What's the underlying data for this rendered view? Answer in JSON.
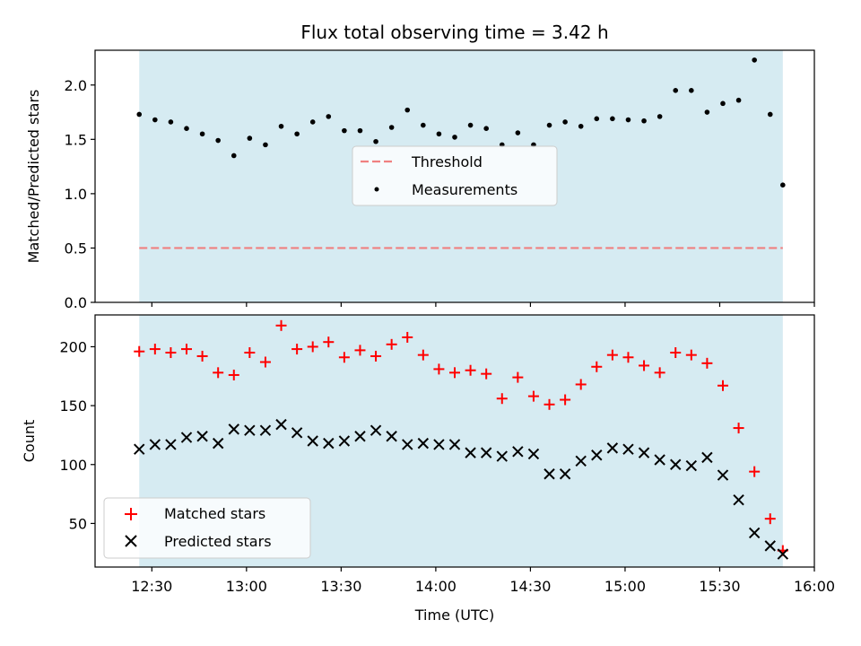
{
  "chart_data": [
    {
      "type": "scatter",
      "title": "Flux total observing time = 3.42 h",
      "xlabel": "",
      "ylabel": "Matched/Predicted stars",
      "ylim": [
        0,
        2.32
      ],
      "yticks": [
        "0.0",
        "0.5",
        "1.0",
        "1.5",
        "2.0"
      ],
      "ytick_values": [
        0,
        0.5,
        1.0,
        1.5,
        2.0
      ],
      "x_range": [
        "12:12",
        "16:00"
      ],
      "shaded_span": [
        "12:26",
        "15:50"
      ],
      "legend_placement": "center",
      "threshold": {
        "name": "Threshold",
        "value": 0.5,
        "color": "#f08080",
        "style": "dashed"
      },
      "series": [
        {
          "name": "Measurements",
          "color": "#000000",
          "marker": "dot",
          "x": [
            "12:26",
            "12:31",
            "12:36",
            "12:41",
            "12:46",
            "12:51",
            "12:56",
            "13:01",
            "13:06",
            "13:11",
            "13:16",
            "13:21",
            "13:26",
            "13:31",
            "13:36",
            "13:41",
            "13:46",
            "13:51",
            "13:56",
            "14:01",
            "14:06",
            "14:11",
            "14:16",
            "14:21",
            "14:26",
            "14:31",
            "14:36",
            "14:41",
            "14:46",
            "14:51",
            "14:56",
            "15:01",
            "15:06",
            "15:11",
            "15:16",
            "15:21",
            "15:26",
            "15:31",
            "15:36",
            "15:41",
            "15:46",
            "15:50"
          ],
          "y": [
            1.73,
            1.68,
            1.66,
            1.6,
            1.55,
            1.49,
            1.35,
            1.51,
            1.45,
            1.62,
            1.55,
            1.66,
            1.71,
            1.58,
            1.58,
            1.48,
            1.61,
            1.77,
            1.63,
            1.55,
            1.52,
            1.63,
            1.6,
            1.45,
            1.56,
            1.45,
            1.63,
            1.66,
            1.62,
            1.69,
            1.69,
            1.68,
            1.67,
            1.71,
            1.95,
            1.95,
            1.75,
            1.83,
            1.86,
            2.23,
            1.73,
            1.08
          ]
        }
      ]
    },
    {
      "type": "scatter",
      "title": "",
      "xlabel": "Time (UTC)",
      "ylabel": "Count",
      "ylim": [
        13,
        227
      ],
      "yticks": [
        "50",
        "100",
        "150",
        "200"
      ],
      "ytick_values": [
        50,
        100,
        150,
        200
      ],
      "x_range": [
        "12:12",
        "16:00"
      ],
      "xticks": [
        "12:30",
        "13:00",
        "13:30",
        "14:00",
        "14:30",
        "15:00",
        "15:30",
        "16:00"
      ],
      "shaded_span": [
        "12:26",
        "15:50"
      ],
      "legend_placement": "lower-left",
      "series": [
        {
          "name": "Matched stars",
          "color": "#ff0000",
          "marker": "plus",
          "x": [
            "12:26",
            "12:31",
            "12:36",
            "12:41",
            "12:46",
            "12:51",
            "12:56",
            "13:01",
            "13:06",
            "13:11",
            "13:16",
            "13:21",
            "13:26",
            "13:31",
            "13:36",
            "13:41",
            "13:46",
            "13:51",
            "13:56",
            "14:01",
            "14:06",
            "14:11",
            "14:16",
            "14:21",
            "14:26",
            "14:31",
            "14:36",
            "14:41",
            "14:46",
            "14:51",
            "14:56",
            "15:01",
            "15:06",
            "15:11",
            "15:16",
            "15:21",
            "15:26",
            "15:31",
            "15:36",
            "15:41",
            "15:46",
            "15:50"
          ],
          "y": [
            196,
            198,
            195,
            198,
            192,
            178,
            176,
            195,
            187,
            218,
            198,
            200,
            204,
            191,
            197,
            192,
            202,
            208,
            193,
            181,
            178,
            180,
            177,
            156,
            174,
            158,
            151,
            155,
            168,
            183,
            193,
            191,
            184,
            178,
            195,
            193,
            186,
            167,
            131,
            94,
            54,
            27
          ]
        },
        {
          "name": "Predicted stars",
          "color": "#000000",
          "marker": "x",
          "x": [
            "12:26",
            "12:31",
            "12:36",
            "12:41",
            "12:46",
            "12:51",
            "12:56",
            "13:01",
            "13:06",
            "13:11",
            "13:16",
            "13:21",
            "13:26",
            "13:31",
            "13:36",
            "13:41",
            "13:46",
            "13:51",
            "13:56",
            "14:01",
            "14:06",
            "14:11",
            "14:16",
            "14:21",
            "14:26",
            "14:31",
            "14:36",
            "14:41",
            "14:46",
            "14:51",
            "14:56",
            "15:01",
            "15:06",
            "15:11",
            "15:16",
            "15:21",
            "15:26",
            "15:31",
            "15:36",
            "15:41",
            "15:46",
            "15:50"
          ],
          "y": [
            113,
            117,
            117,
            123,
            124,
            118,
            130,
            129,
            129,
            134,
            127,
            120,
            118,
            120,
            124,
            129,
            124,
            117,
            118,
            117,
            117,
            110,
            110,
            107,
            111,
            109,
            92,
            92,
            103,
            108,
            114,
            113,
            110,
            104,
            100,
            99,
            106,
            91,
            70,
            42,
            31,
            24
          ]
        }
      ]
    }
  ]
}
